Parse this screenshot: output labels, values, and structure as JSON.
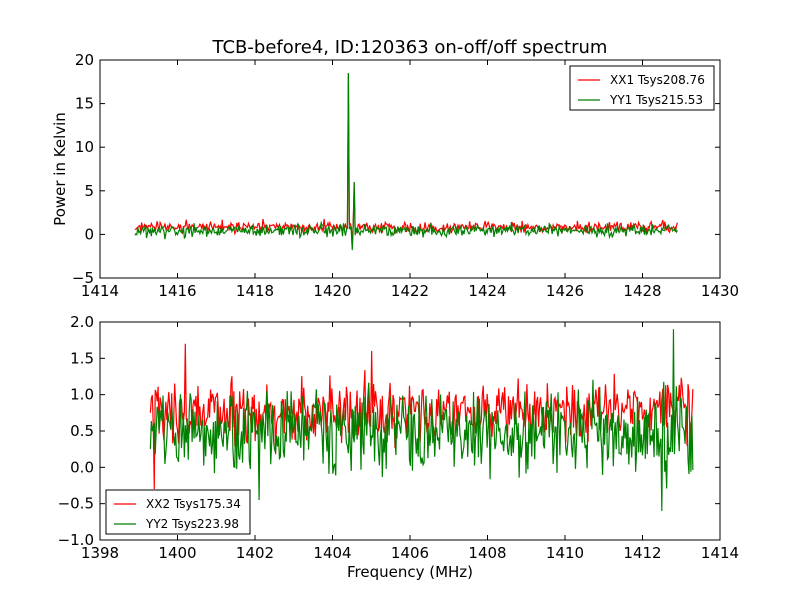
{
  "figure": {
    "title": "TCB-before4, ID:120363 on-off/off spectrum"
  },
  "chart_data": [
    {
      "type": "line",
      "title": "TCB-before4, ID:120363 on-off/off spectrum",
      "xlabel": "",
      "ylabel": "Power in Kelvin",
      "xlim": [
        1414,
        1430
      ],
      "ylim": [
        -5,
        20
      ],
      "xticks": [
        1414,
        1416,
        1418,
        1420,
        1422,
        1424,
        1426,
        1428,
        1430
      ],
      "yticks": [
        -5,
        0,
        5,
        10,
        15,
        20
      ],
      "legend_position": "top-right",
      "grid": false,
      "series": [
        {
          "name": "XX1 Tsys208.76",
          "color": "#ff0000",
          "x_range": [
            1414.9,
            1428.9
          ],
          "baseline": 0.8,
          "noise": 0.45,
          "features": [
            {
              "x": 1420.42,
              "y": 18.5
            },
            {
              "x": 1420.5,
              "y": -1.5
            },
            {
              "x": 1420.55,
              "y": 6.0
            }
          ]
        },
        {
          "name": "YY1 Tsys215.53",
          "color": "#008000",
          "x_range": [
            1414.9,
            1428.9
          ],
          "baseline": 0.45,
          "noise": 0.5,
          "features": [
            {
              "x": 1420.42,
              "y": 18.5
            },
            {
              "x": 1420.5,
              "y": -1.8
            },
            {
              "x": 1420.57,
              "y": 6.0
            }
          ]
        }
      ]
    },
    {
      "type": "line",
      "title": "",
      "xlabel": "Frequency (MHz)",
      "ylabel": "",
      "xlim": [
        1398,
        1414
      ],
      "ylim": [
        -1.0,
        2.0
      ],
      "xticks": [
        1398,
        1400,
        1402,
        1404,
        1406,
        1408,
        1410,
        1412,
        1414
      ],
      "yticks": [
        -1.0,
        -0.5,
        0.0,
        0.5,
        1.0,
        1.5,
        2.0
      ],
      "legend_position": "bottom-left",
      "grid": false,
      "series": [
        {
          "name": "XX2 Tsys175.34",
          "color": "#ff0000",
          "x_range": [
            1399.3,
            1413.3
          ],
          "baseline": 0.75,
          "noise": 0.3,
          "features": [
            {
              "x": 1399.4,
              "y": -0.3
            },
            {
              "x": 1400.2,
              "y": 1.7
            },
            {
              "x": 1405.0,
              "y": 1.6
            }
          ]
        },
        {
          "name": "YY2 Tsys223.98",
          "color": "#008000",
          "x_range": [
            1399.3,
            1413.3
          ],
          "baseline": 0.5,
          "noise": 0.4,
          "features": [
            {
              "x": 1412.8,
              "y": 1.9
            },
            {
              "x": 1412.5,
              "y": -0.6
            },
            {
              "x": 1402.1,
              "y": -0.45
            }
          ]
        }
      ]
    }
  ]
}
